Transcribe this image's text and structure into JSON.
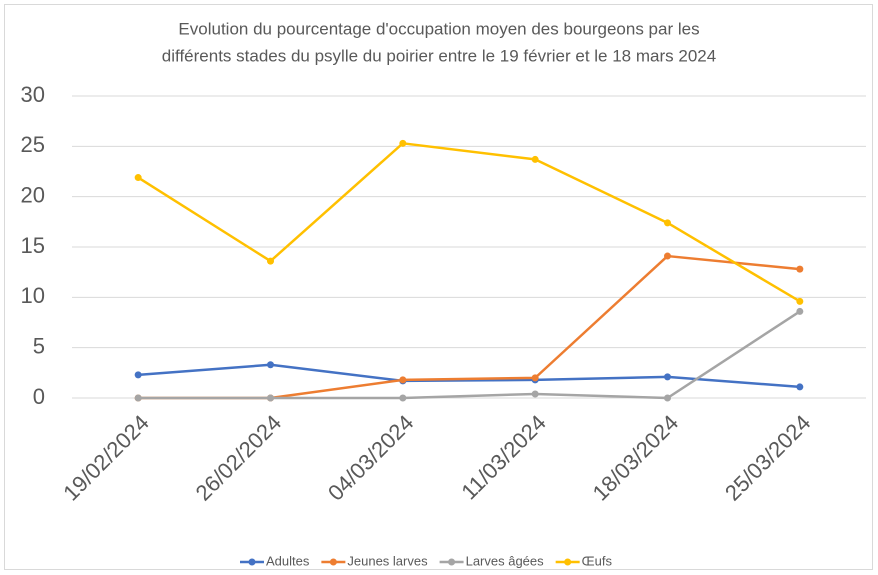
{
  "chart_data": {
    "type": "line",
    "title": [
      "Evolution du pourcentage d'occupation moyen des bourgeons par les",
      "différents stades du psylle du poirier entre le 19 février et le 18 mars 2024"
    ],
    "categories": [
      "19/02/2024",
      "26/02/2024",
      "04/03/2024",
      "11/03/2024",
      "18/03/2024",
      "25/03/2024"
    ],
    "series": [
      {
        "name": "Adultes",
        "color": "#4472c4",
        "values": [
          2.3,
          3.3,
          1.7,
          1.8,
          2.1,
          1.1
        ]
      },
      {
        "name": "Jeunes larves",
        "color": "#ed7d31",
        "values": [
          0,
          0,
          1.8,
          2.0,
          14.1,
          12.8
        ]
      },
      {
        "name": "Larves âgées",
        "color": "#a5a5a5",
        "values": [
          0,
          0,
          0,
          0.4,
          0,
          8.6
        ]
      },
      {
        "name": "Œufs",
        "color": "#ffc000",
        "values": [
          21.9,
          13.6,
          25.3,
          23.7,
          17.4,
          9.6
        ]
      }
    ],
    "ylim": [
      0,
      30
    ],
    "yticks": [
      0,
      5,
      10,
      15,
      20,
      25,
      30
    ],
    "grid": true,
    "legend": "bottom"
  }
}
